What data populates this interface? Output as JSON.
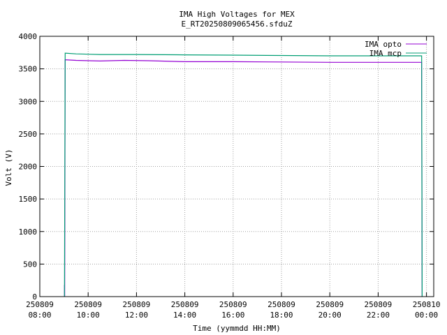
{
  "chart_data": {
    "type": "line",
    "title": "IMA High Voltages for MEX",
    "subtitle": "E_RT20250809065456.sfduZ",
    "xlabel": "Time (yymmdd HH:MM)",
    "ylabel": "Volt (V)",
    "x_ticks": [
      {
        "hours": 8,
        "date": "250809",
        "time": "08:00"
      },
      {
        "hours": 10,
        "date": "250809",
        "time": "10:00"
      },
      {
        "hours": 12,
        "date": "250809",
        "time": "12:00"
      },
      {
        "hours": 14,
        "date": "250809",
        "time": "14:00"
      },
      {
        "hours": 16,
        "date": "250809",
        "time": "16:00"
      },
      {
        "hours": 18,
        "date": "250809",
        "time": "18:00"
      },
      {
        "hours": 20,
        "date": "250809",
        "time": "20:00"
      },
      {
        "hours": 22,
        "date": "250809",
        "time": "22:00"
      },
      {
        "hours": 24,
        "date": "250810",
        "time": "00:00"
      }
    ],
    "xlim_hours": [
      8,
      24.3
    ],
    "ylim": [
      0,
      4000
    ],
    "y_ticks": [
      0,
      500,
      1000,
      1500,
      2000,
      2500,
      3000,
      3500,
      4000
    ],
    "grid": true,
    "legend_position": "top-right",
    "series": [
      {
        "name": "IMA opto",
        "color": "#9400d3",
        "points": [
          [
            9.02,
            0
          ],
          [
            9.02,
            180
          ],
          [
            9.03,
            0
          ],
          [
            9.05,
            3640
          ],
          [
            9.5,
            3630
          ],
          [
            10.5,
            3620
          ],
          [
            11.5,
            3630
          ],
          [
            12.5,
            3625
          ],
          [
            14.0,
            3610
          ],
          [
            16.0,
            3610
          ],
          [
            18.0,
            3605
          ],
          [
            20.0,
            3600
          ],
          [
            22.0,
            3600
          ],
          [
            23.8,
            3600
          ],
          [
            23.82,
            0
          ]
        ]
      },
      {
        "name": "IMA mcp",
        "color": "#009e73",
        "points": [
          [
            9.02,
            0
          ],
          [
            9.05,
            3740
          ],
          [
            9.5,
            3730
          ],
          [
            10.5,
            3720
          ],
          [
            12.0,
            3720
          ],
          [
            14.0,
            3715
          ],
          [
            16.0,
            3710
          ],
          [
            18.0,
            3705
          ],
          [
            20.0,
            3700
          ],
          [
            22.0,
            3700
          ],
          [
            23.8,
            3700
          ],
          [
            23.82,
            0
          ]
        ]
      }
    ]
  }
}
